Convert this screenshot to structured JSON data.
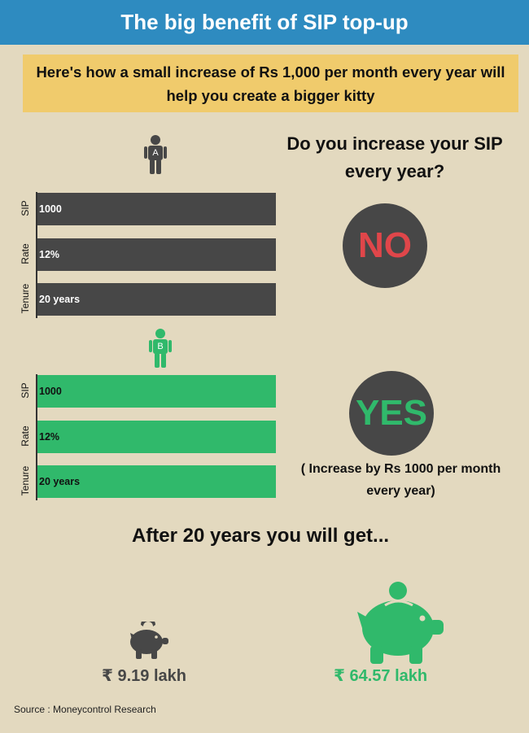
{
  "header": {
    "title": "The big benefit of SIP top-up"
  },
  "banner": {
    "text": "Here's how a small increase of Rs 1,000 per month every year will help you  create a bigger kitty"
  },
  "person_a": {
    "badge": "A",
    "rows": [
      {
        "label": "SIP",
        "value": "1000"
      },
      {
        "label": "Rate",
        "value": "12%"
      },
      {
        "label": "Tenure",
        "value": "20 years"
      }
    ]
  },
  "person_b": {
    "badge": "B",
    "rows": [
      {
        "label": "SIP",
        "value": "1000"
      },
      {
        "label": "Rate",
        "value": "12%"
      },
      {
        "label": "Tenure",
        "value": "20 years"
      }
    ]
  },
  "question": "Do you increase your SIP every year?",
  "answer_a": "NO",
  "answer_b": "YES",
  "answer_b_note": "( Increase by Rs 1000 per month every year)",
  "result_heading": "After 20 years you will get...",
  "results": {
    "a": {
      "currency": "₹",
      "value": "9.19 lakh"
    },
    "b": {
      "currency": "₹",
      "value": "64.57 lakh"
    }
  },
  "source": "Source :  Moneycontrol Research",
  "colors": {
    "header": "#2e8bc0",
    "banner": "#f0cb6c",
    "gray": "#474747",
    "green": "#30b96b",
    "red": "#e0464a",
    "background": "#e3d9bf"
  }
}
